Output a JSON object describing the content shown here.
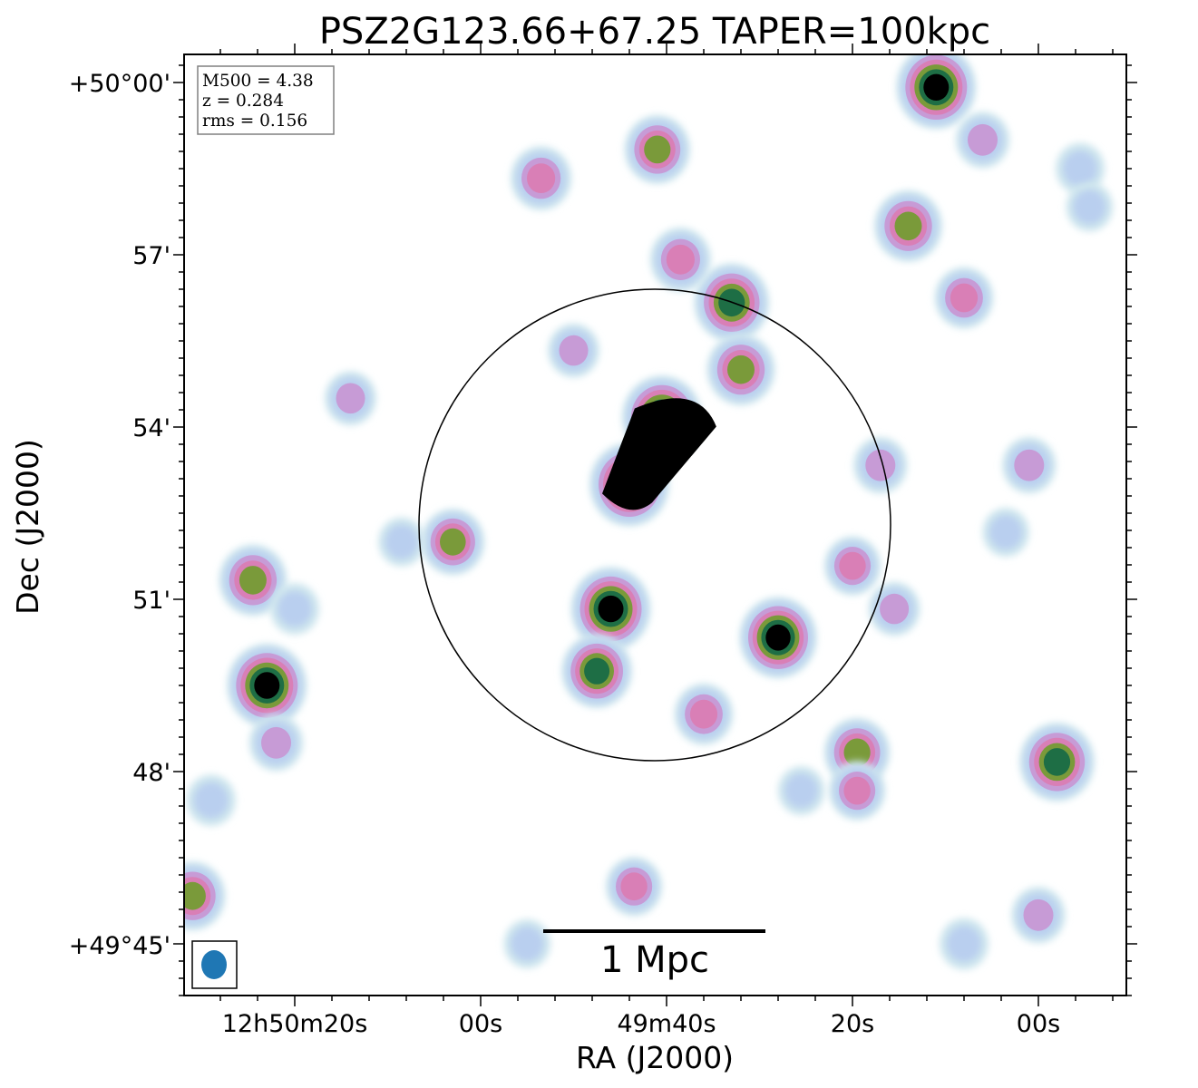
{
  "chart_data": {
    "type": "heatmap",
    "title": "PSZ2G123.66+67.25 TAPER=100kpc",
    "xlabel": "RA (J2000)",
    "ylabel": "Dec (J2000)",
    "x_ticks": [
      "12h50m20s",
      "00s",
      "49m40s",
      "20s",
      "00s"
    ],
    "y_ticks": [
      "+50°00'",
      "57'",
      "54'",
      "51'",
      "48'",
      "+49°45'"
    ],
    "info": [
      "M500 = 4.38",
      "z = 0.284",
      "rms = 0.156"
    ],
    "scalebar_label": "1 Mpc",
    "colormap": [
      "#ffffff",
      "#cfe6ee",
      "#b9cfef",
      "#c79bd6",
      "#d97fb6",
      "#7a9a3a",
      "#1e6e45",
      "#000000"
    ],
    "beam_color": "#1f77b4",
    "sources": [
      {
        "ra": "12:49:40.5",
        "dec": "+49:54:10",
        "level": 1.0
      },
      {
        "ra": "12:49:44.0",
        "dec": "+49:53:00",
        "level": 1.0
      },
      {
        "ra": "12:49:46.0",
        "dec": "+49:50:50",
        "level": 1.0
      },
      {
        "ra": "12:50:23.0",
        "dec": "+49:49:30",
        "level": 1.0
      },
      {
        "ra": "12:49:11.0",
        "dec": "+49:59:55",
        "level": 1.0
      },
      {
        "ra": "12:49:28.0",
        "dec": "+49:50:20",
        "level": 0.95
      },
      {
        "ra": "12:49:33.0",
        "dec": "+49:56:10",
        "level": 0.9
      },
      {
        "ra": "12:48:58.0",
        "dec": "+49:48:10",
        "level": 0.9
      },
      {
        "ra": "12:49:47.5",
        "dec": "+49:49:45",
        "level": 0.8
      },
      {
        "ra": "12:49:14.0",
        "dec": "+49:57:30",
        "level": 0.75
      },
      {
        "ra": "12:50:24.5",
        "dec": "+49:51:20",
        "level": 0.75
      },
      {
        "ra": "12:49:32.0",
        "dec": "+49:55:00",
        "level": 0.75
      },
      {
        "ra": "12:49:41.0",
        "dec": "+49:58:50",
        "level": 0.7
      },
      {
        "ra": "12:50:31.0",
        "dec": "+49:45:50",
        "level": 0.7
      },
      {
        "ra": "12:49:19.5",
        "dec": "+49:48:20",
        "level": 0.7
      },
      {
        "ra": "12:50:03.0",
        "dec": "+49:52:00",
        "level": 0.65
      },
      {
        "ra": "12:49:53.5",
        "dec": "+49:58:20",
        "level": 0.6
      },
      {
        "ra": "12:49:38.5",
        "dec": "+49:56:55",
        "level": 0.6
      },
      {
        "ra": "12:49:08.0",
        "dec": "+49:56:15",
        "level": 0.55
      },
      {
        "ra": "12:49:36.0",
        "dec": "+49:49:00",
        "level": 0.55
      },
      {
        "ra": "12:49:20.0",
        "dec": "+49:51:35",
        "level": 0.5
      },
      {
        "ra": "12:49:19.5",
        "dec": "+49:47:40",
        "level": 0.5
      },
      {
        "ra": "12:49:43.5",
        "dec": "+49:46:00",
        "level": 0.5
      },
      {
        "ra": "12:49:17.0",
        "dec": "+49:53:20",
        "level": 0.45
      },
      {
        "ra": "12:49:01.0",
        "dec": "+49:53:20",
        "level": 0.45
      },
      {
        "ra": "12:50:22.0",
        "dec": "+49:48:30",
        "level": 0.45
      },
      {
        "ra": "12:49:00.0",
        "dec": "+49:45:30",
        "level": 0.45
      },
      {
        "ra": "12:49:06.0",
        "dec": "+49:59:00",
        "level": 0.45
      },
      {
        "ra": "12:49:15.5",
        "dec": "+49:50:50",
        "level": 0.4
      },
      {
        "ra": "12:50:14.0",
        "dec": "+49:54:30",
        "level": 0.4
      },
      {
        "ra": "12:49:50.0",
        "dec": "+49:55:20",
        "level": 0.4
      },
      {
        "ra": "12:50:20.0",
        "dec": "+49:50:50",
        "level": 0.35
      },
      {
        "ra": "12:50:08.5",
        "dec": "+49:52:00",
        "level": 0.3
      },
      {
        "ra": "12:50:29.0",
        "dec": "+49:47:30",
        "level": 0.35
      },
      {
        "ra": "12:49:08.0",
        "dec": "+49:45:00",
        "level": 0.35
      },
      {
        "ra": "12:48:55.5",
        "dec": "+49:58:30",
        "level": 0.35
      },
      {
        "ra": "12:49:55.0",
        "dec": "+49:45:00",
        "level": 0.3
      },
      {
        "ra": "12:49:03.5",
        "dec": "+49:52:10",
        "level": 0.3
      },
      {
        "ra": "12:49:25.5",
        "dec": "+49:47:40",
        "level": 0.3
      },
      {
        "ra": "12:48:54.5",
        "dec": "+49:57:50",
        "level": 0.3
      }
    ],
    "circle": {
      "ra": "12:49:41.0",
      "dec": "+49:52:20",
      "radius_mpc": 1.07
    }
  }
}
